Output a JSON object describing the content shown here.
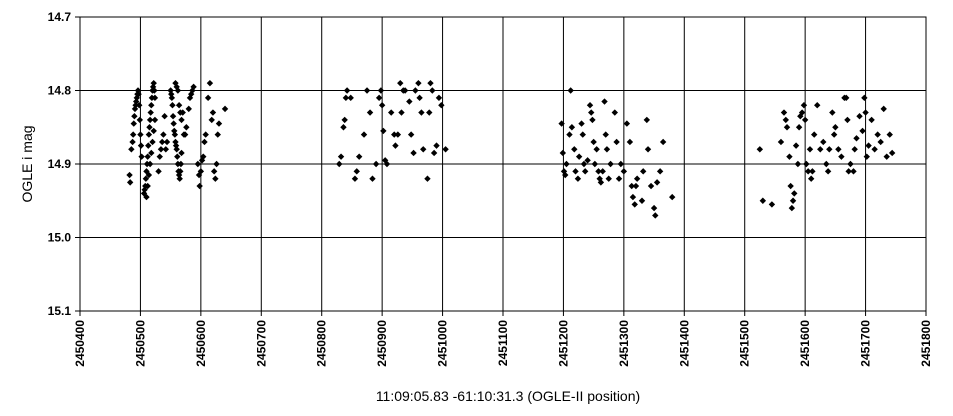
{
  "chart_data": {
    "type": "scatter",
    "xlabel": "11:09:05.83 -61:10:31.3 (OGLE-II position)",
    "ylabel": "OGLE i mag",
    "xlim": [
      2450400,
      2451800
    ],
    "ylim": [
      14.7,
      15.1
    ],
    "y_inverted": true,
    "xticks": [
      2450400,
      2450500,
      2450600,
      2450700,
      2450800,
      2450900,
      2451000,
      2451100,
      2451200,
      2451300,
      2451400,
      2451500,
      2451600,
      2451700,
      2451800
    ],
    "yticks": [
      14.7,
      14.8,
      14.9,
      15.0,
      15.1
    ],
    "ytick_labels": [
      "14.7",
      "14.8",
      "14.9",
      "15.0",
      "15.1"
    ],
    "grid": true,
    "marker": "diamond",
    "marker_color": "#000000",
    "series": [
      {
        "points": [
          [
            2450482,
            14.915
          ],
          [
            2450483,
            14.925
          ],
          [
            2450485,
            14.88
          ],
          [
            2450487,
            14.87
          ],
          [
            2450488,
            14.86
          ],
          [
            2450489,
            14.845
          ],
          [
            2450490,
            14.835
          ],
          [
            2450491,
            14.825
          ],
          [
            2450492,
            14.82
          ],
          [
            2450493,
            14.815
          ],
          [
            2450494,
            14.81
          ],
          [
            2450495,
            14.805
          ],
          [
            2450496,
            14.8
          ],
          [
            2450497,
            14.805
          ],
          [
            2450498,
            14.82
          ],
          [
            2450499,
            14.84
          ],
          [
            2450500,
            14.86
          ],
          [
            2450501,
            14.875
          ],
          [
            2450502,
            14.89
          ],
          [
            2450506,
            14.94
          ],
          [
            2450507,
            14.935
          ],
          [
            2450508,
            14.93
          ],
          [
            2450509,
            14.92
          ],
          [
            2450510,
            14.91
          ],
          [
            2450511,
            14.9
          ],
          [
            2450512,
            14.89
          ],
          [
            2450513,
            14.875
          ],
          [
            2450514,
            14.86
          ],
          [
            2450515,
            14.85
          ],
          [
            2450516,
            14.84
          ],
          [
            2450517,
            14.83
          ],
          [
            2450518,
            14.82
          ],
          [
            2450519,
            14.81
          ],
          [
            2450520,
            14.8
          ],
          [
            2450521,
            14.795
          ],
          [
            2450522,
            14.79
          ],
          [
            2450523,
            14.8
          ],
          [
            2450524,
            14.81
          ],
          [
            2450510,
            14.945
          ],
          [
            2450512,
            14.93
          ],
          [
            2450514,
            14.915
          ],
          [
            2450516,
            14.9
          ],
          [
            2450518,
            14.885
          ],
          [
            2450520,
            14.87
          ],
          [
            2450522,
            14.855
          ],
          [
            2450524,
            14.84
          ],
          [
            2450530,
            14.91
          ],
          [
            2450532,
            14.89
          ],
          [
            2450534,
            14.88
          ],
          [
            2450536,
            14.87
          ],
          [
            2450538,
            14.86
          ],
          [
            2450540,
            14.835
          ],
          [
            2450542,
            14.88
          ],
          [
            2450544,
            14.87
          ],
          [
            2450550,
            14.8
          ],
          [
            2450551,
            14.805
          ],
          [
            2450552,
            14.81
          ],
          [
            2450553,
            14.82
          ],
          [
            2450554,
            14.835
          ],
          [
            2450555,
            14.845
          ],
          [
            2450556,
            14.855
          ],
          [
            2450557,
            14.86
          ],
          [
            2450558,
            14.87
          ],
          [
            2450559,
            14.875
          ],
          [
            2450560,
            14.88
          ],
          [
            2450561,
            14.89
          ],
          [
            2450562,
            14.9
          ],
          [
            2450563,
            14.91
          ],
          [
            2450564,
            14.915
          ],
          [
            2450565,
            14.92
          ],
          [
            2450566,
            14.91
          ],
          [
            2450567,
            14.9
          ],
          [
            2450568,
            14.885
          ],
          [
            2450558,
            14.79
          ],
          [
            2450560,
            14.795
          ],
          [
            2450562,
            14.8
          ],
          [
            2450564,
            14.82
          ],
          [
            2450566,
            14.83
          ],
          [
            2450568,
            14.84
          ],
          [
            2450570,
            14.83
          ],
          [
            2450572,
            14.86
          ],
          [
            2450574,
            14.86
          ],
          [
            2450576,
            14.85
          ],
          [
            2450580,
            14.825
          ],
          [
            2450582,
            14.81
          ],
          [
            2450584,
            14.805
          ],
          [
            2450586,
            14.8
          ],
          [
            2450588,
            14.795
          ],
          [
            2450595,
            14.9
          ],
          [
            2450597,
            14.915
          ],
          [
            2450598,
            14.93
          ],
          [
            2450600,
            14.91
          ],
          [
            2450602,
            14.895
          ],
          [
            2450604,
            14.89
          ],
          [
            2450606,
            14.87
          ],
          [
            2450608,
            14.86
          ],
          [
            2450612,
            14.81
          ],
          [
            2450615,
            14.79
          ],
          [
            2450618,
            14.84
          ],
          [
            2450620,
            14.83
          ],
          [
            2450622,
            14.91
          ],
          [
            2450624,
            14.92
          ],
          [
            2450626,
            14.9
          ],
          [
            2450628,
            14.86
          ],
          [
            2450630,
            14.845
          ],
          [
            2450640,
            14.825
          ],
          [
            2450829,
            14.9
          ],
          [
            2450832,
            14.89
          ],
          [
            2450836,
            14.85
          ],
          [
            2450838,
            14.84
          ],
          [
            2450840,
            14.81
          ],
          [
            2450842,
            14.8
          ],
          [
            2450848,
            14.81
          ],
          [
            2450855,
            14.92
          ],
          [
            2450858,
            14.91
          ],
          [
            2450862,
            14.89
          ],
          [
            2450870,
            14.86
          ],
          [
            2450875,
            14.8
          ],
          [
            2450880,
            14.83
          ],
          [
            2450884,
            14.92
          ],
          [
            2450890,
            14.9
          ],
          [
            2450895,
            14.81
          ],
          [
            2450898,
            14.8
          ],
          [
            2450900,
            14.82
          ],
          [
            2450902,
            14.855
          ],
          [
            2450905,
            14.895
          ],
          [
            2450908,
            14.9
          ],
          [
            2450915,
            14.83
          ],
          [
            2450920,
            14.86
          ],
          [
            2450922,
            14.875
          ],
          [
            2450926,
            14.86
          ],
          [
            2450930,
            14.79
          ],
          [
            2450932,
            14.83
          ],
          [
            2450935,
            14.8
          ],
          [
            2450938,
            14.8
          ],
          [
            2450945,
            14.815
          ],
          [
            2450948,
            14.86
          ],
          [
            2450952,
            14.885
          ],
          [
            2450955,
            14.8
          ],
          [
            2450960,
            14.79
          ],
          [
            2450962,
            14.81
          ],
          [
            2450965,
            14.83
          ],
          [
            2450968,
            14.88
          ],
          [
            2450975,
            14.92
          ],
          [
            2450978,
            14.83
          ],
          [
            2450980,
            14.79
          ],
          [
            2450983,
            14.8
          ],
          [
            2450986,
            14.885
          ],
          [
            2450990,
            14.875
          ],
          [
            2450994,
            14.81
          ],
          [
            2450998,
            14.82
          ],
          [
            2451005,
            14.88
          ],
          [
            2451197,
            14.845
          ],
          [
            2451199,
            14.885
          ],
          [
            2451201,
            14.91
          ],
          [
            2451203,
            14.915
          ],
          [
            2451205,
            14.9
          ],
          [
            2451210,
            14.86
          ],
          [
            2451212,
            14.8
          ],
          [
            2451214,
            14.85
          ],
          [
            2451218,
            14.88
          ],
          [
            2451220,
            14.91
          ],
          [
            2451224,
            14.92
          ],
          [
            2451226,
            14.89
          ],
          [
            2451230,
            14.845
          ],
          [
            2451232,
            14.86
          ],
          [
            2451234,
            14.9
          ],
          [
            2451236,
            14.91
          ],
          [
            2451240,
            14.895
          ],
          [
            2451244,
            14.82
          ],
          [
            2451246,
            14.83
          ],
          [
            2451248,
            14.84
          ],
          [
            2451250,
            14.87
          ],
          [
            2451252,
            14.9
          ],
          [
            2451255,
            14.88
          ],
          [
            2451258,
            14.91
          ],
          [
            2451260,
            14.92
          ],
          [
            2451262,
            14.925
          ],
          [
            2451265,
            14.91
          ],
          [
            2451268,
            14.815
          ],
          [
            2451270,
            14.86
          ],
          [
            2451272,
            14.88
          ],
          [
            2451275,
            14.92
          ],
          [
            2451278,
            14.9
          ],
          [
            2451285,
            14.83
          ],
          [
            2451288,
            14.87
          ],
          [
            2451292,
            14.92
          ],
          [
            2451295,
            14.9
          ],
          [
            2451300,
            14.91
          ],
          [
            2451305,
            14.845
          ],
          [
            2451310,
            14.87
          ],
          [
            2451313,
            14.93
          ],
          [
            2451315,
            14.945
          ],
          [
            2451318,
            14.955
          ],
          [
            2451320,
            14.93
          ],
          [
            2451322,
            14.92
          ],
          [
            2451330,
            14.95
          ],
          [
            2451332,
            14.91
          ],
          [
            2451338,
            14.84
          ],
          [
            2451340,
            14.88
          ],
          [
            2451345,
            14.93
          ],
          [
            2451350,
            14.96
          ],
          [
            2451352,
            14.97
          ],
          [
            2451355,
            14.925
          ],
          [
            2451360,
            14.91
          ],
          [
            2451365,
            14.87
          ],
          [
            2451380,
            14.945
          ],
          [
            2451525,
            14.88
          ],
          [
            2451530,
            14.95
          ],
          [
            2451545,
            14.955
          ],
          [
            2451560,
            14.87
          ],
          [
            2451565,
            14.83
          ],
          [
            2451568,
            14.84
          ],
          [
            2451570,
            14.85
          ],
          [
            2451574,
            14.89
          ],
          [
            2451576,
            14.93
          ],
          [
            2451578,
            14.96
          ],
          [
            2451580,
            14.95
          ],
          [
            2451582,
            14.94
          ],
          [
            2451585,
            14.875
          ],
          [
            2451588,
            14.9
          ],
          [
            2451590,
            14.85
          ],
          [
            2451592,
            14.835
          ],
          [
            2451595,
            14.83
          ],
          [
            2451598,
            14.82
          ],
          [
            2451600,
            14.84
          ],
          [
            2451602,
            14.9
          ],
          [
            2451605,
            14.91
          ],
          [
            2451608,
            14.88
          ],
          [
            2451610,
            14.92
          ],
          [
            2451612,
            14.91
          ],
          [
            2451615,
            14.86
          ],
          [
            2451620,
            14.82
          ],
          [
            2451625,
            14.88
          ],
          [
            2451630,
            14.87
          ],
          [
            2451635,
            14.9
          ],
          [
            2451638,
            14.91
          ],
          [
            2451640,
            14.88
          ],
          [
            2451645,
            14.83
          ],
          [
            2451648,
            14.86
          ],
          [
            2451650,
            14.85
          ],
          [
            2451655,
            14.88
          ],
          [
            2451660,
            14.89
          ],
          [
            2451665,
            14.81
          ],
          [
            2451668,
            14.81
          ],
          [
            2451670,
            14.84
          ],
          [
            2451672,
            14.91
          ],
          [
            2451675,
            14.9
          ],
          [
            2451680,
            14.91
          ],
          [
            2451682,
            14.88
          ],
          [
            2451685,
            14.865
          ],
          [
            2451690,
            14.835
          ],
          [
            2451695,
            14.855
          ],
          [
            2451698,
            14.81
          ],
          [
            2451700,
            14.83
          ],
          [
            2451702,
            14.89
          ],
          [
            2451705,
            14.875
          ],
          [
            2451710,
            14.84
          ],
          [
            2451715,
            14.88
          ],
          [
            2451720,
            14.86
          ],
          [
            2451725,
            14.87
          ],
          [
            2451730,
            14.825
          ],
          [
            2451735,
            14.89
          ],
          [
            2451740,
            14.86
          ],
          [
            2451744,
            14.885
          ]
        ]
      }
    ]
  }
}
